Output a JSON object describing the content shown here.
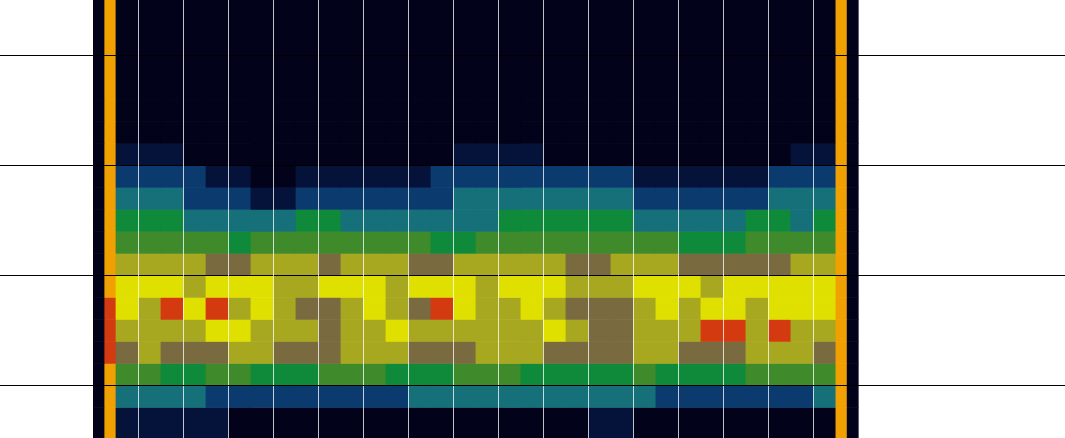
{
  "chart_data": {
    "type": "heatmap",
    "xlim": [
      -2.07,
      21.6
    ],
    "xticks": [
      1,
      2,
      3,
      4,
      5,
      6,
      7,
      8,
      9,
      10,
      11,
      12,
      13,
      14,
      15,
      16
    ],
    "ylim": [
      -48,
      350
    ],
    "yticks": [
      0,
      100,
      200,
      300
    ],
    "grid": true,
    "tick_labels": false,
    "x_edges": [
      0,
      0.25,
      0.5,
      1,
      1.5,
      2,
      2.5,
      3,
      3.5,
      4,
      4.5,
      5,
      5.5,
      6,
      6.5,
      7,
      7.5,
      8,
      8.5,
      9,
      9.5,
      10,
      10.5,
      11,
      11.5,
      12,
      12.5,
      13,
      13.5,
      14,
      14.5,
      15,
      15.5,
      16,
      16.5,
      16.75,
      17
    ],
    "y_edges": [
      -48,
      -20,
      0,
      20,
      40,
      60,
      80,
      100,
      120,
      140,
      160,
      180,
      200,
      220,
      240,
      260,
      350
    ],
    "cells": [
      [
        0,
        9,
        1,
        1,
        1,
        1,
        1,
        0,
        0,
        0,
        0,
        0,
        0,
        0,
        0,
        0,
        0,
        0,
        0,
        0,
        0,
        0,
        0,
        1,
        1,
        0,
        0,
        0,
        0,
        0,
        0,
        0,
        0,
        0,
        9,
        0
      ],
      [
        0,
        9,
        3,
        3,
        3,
        3,
        2,
        2,
        2,
        2,
        2,
        2,
        2,
        2,
        2,
        3,
        3,
        3,
        3,
        3,
        3,
        3,
        3,
        3,
        3,
        3,
        2,
        2,
        2,
        2,
        2,
        2,
        2,
        3,
        9,
        0
      ],
      [
        0,
        9,
        5,
        5,
        4,
        4,
        5,
        5,
        4,
        4,
        4,
        5,
        5,
        5,
        4,
        4,
        4,
        5,
        5,
        5,
        4,
        4,
        4,
        4,
        4,
        5,
        4,
        4,
        4,
        4,
        5,
        5,
        5,
        5,
        9,
        0
      ],
      [
        0,
        10,
        6,
        7,
        6,
        6,
        6,
        7,
        7,
        6,
        6,
        6,
        7,
        7,
        7,
        6,
        6,
        6,
        7,
        7,
        7,
        6,
        6,
        6,
        6,
        7,
        7,
        6,
        6,
        6,
        7,
        7,
        7,
        6,
        9,
        0
      ],
      [
        0,
        10,
        7,
        7,
        7,
        7,
        8,
        8,
        7,
        7,
        7,
        6,
        7,
        7,
        8,
        7,
        7,
        7,
        7,
        7,
        7,
        8,
        7,
        6,
        6,
        7,
        7,
        7,
        10,
        10,
        7,
        10,
        7,
        7,
        9,
        0
      ],
      [
        0,
        10,
        8,
        7,
        10,
        8,
        10,
        7,
        8,
        7,
        6,
        6,
        7,
        8,
        7,
        6,
        10,
        8,
        7,
        7,
        8,
        7,
        6,
        6,
        6,
        7,
        8,
        7,
        8,
        8,
        7,
        8,
        8,
        8,
        9,
        0
      ],
      [
        0,
        9,
        8,
        8,
        8,
        7,
        8,
        8,
        8,
        7,
        7,
        8,
        8,
        8,
        7,
        8,
        8,
        8,
        7,
        8,
        8,
        8,
        7,
        7,
        7,
        8,
        8,
        8,
        7,
        8,
        8,
        8,
        8,
        8,
        9,
        0
      ],
      [
        0,
        9,
        7,
        7,
        7,
        7,
        6,
        6,
        7,
        7,
        7,
        6,
        7,
        7,
        7,
        6,
        6,
        7,
        7,
        7,
        7,
        7,
        6,
        6,
        7,
        7,
        7,
        6,
        6,
        6,
        6,
        6,
        7,
        7,
        9,
        0
      ],
      [
        0,
        9,
        5,
        5,
        5,
        5,
        5,
        4,
        5,
        5,
        5,
        5,
        5,
        5,
        5,
        5,
        4,
        4,
        5,
        5,
        5,
        5,
        5,
        5,
        5,
        5,
        5,
        4,
        4,
        4,
        5,
        5,
        5,
        5,
        9,
        0
      ],
      [
        0,
        9,
        4,
        4,
        4,
        3,
        3,
        3,
        3,
        3,
        4,
        4,
        3,
        3,
        3,
        3,
        3,
        3,
        3,
        4,
        4,
        4,
        4,
        4,
        4,
        3,
        3,
        3,
        3,
        3,
        4,
        4,
        3,
        4,
        9,
        0
      ],
      [
        0,
        9,
        3,
        3,
        3,
        2,
        2,
        2,
        1,
        1,
        2,
        2,
        2,
        2,
        2,
        2,
        2,
        3,
        3,
        3,
        3,
        3,
        3,
        3,
        3,
        2,
        2,
        2,
        2,
        2,
        2,
        3,
        3,
        3,
        9,
        0
      ],
      [
        0,
        9,
        2,
        2,
        2,
        2,
        1,
        1,
        0,
        0,
        1,
        1,
        1,
        1,
        1,
        1,
        2,
        2,
        2,
        2,
        2,
        2,
        2,
        2,
        2,
        1,
        1,
        1,
        1,
        1,
        1,
        2,
        2,
        2,
        9,
        0
      ],
      [
        0,
        9,
        1,
        1,
        1,
        0,
        0,
        0,
        0,
        0,
        0,
        0,
        0,
        0,
        0,
        0,
        0,
        1,
        1,
        1,
        1,
        0,
        0,
        0,
        0,
        0,
        0,
        0,
        0,
        0,
        0,
        0,
        1,
        1,
        9,
        0
      ],
      [
        0,
        9,
        0,
        0,
        0,
        0,
        0,
        0,
        0,
        0,
        0,
        0,
        0,
        0,
        0,
        0,
        0,
        0,
        0,
        0,
        0,
        0,
        0,
        0,
        0,
        0,
        0,
        0,
        0,
        0,
        0,
        0,
        0,
        0,
        9,
        0
      ],
      [
        0,
        9,
        0,
        0,
        0,
        0,
        0,
        0,
        0,
        0,
        0,
        0,
        0,
        0,
        0,
        0,
        0,
        0,
        0,
        0,
        0,
        0,
        0,
        0,
        0,
        0,
        0,
        0,
        0,
        0,
        0,
        0,
        0,
        0,
        9,
        0
      ],
      [
        0,
        9,
        0,
        0,
        0,
        0,
        0,
        0,
        0,
        0,
        0,
        0,
        0,
        0,
        0,
        0,
        0,
        0,
        0,
        0,
        0,
        0,
        0,
        0,
        0,
        0,
        0,
        0,
        0,
        0,
        0,
        0,
        0,
        0,
        9,
        0
      ]
    ],
    "color_range": [
      0,
      10
    ],
    "colors": [
      "#02031a",
      "#05123a",
      "#0b3a6e",
      "#15707a",
      "#0e8a3a",
      "#3f8a2a",
      "#7a6a40",
      "#a8a820",
      "#e0e000",
      "#f0a000",
      "#d43a10"
    ]
  }
}
